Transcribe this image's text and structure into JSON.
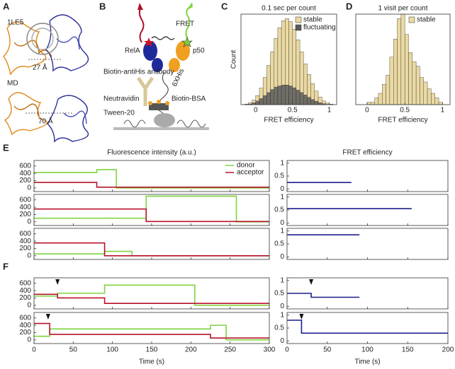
{
  "panel_labels": [
    "A",
    "B",
    "C",
    "D",
    "E",
    "F"
  ],
  "panel_a": {
    "top_label": "1LE5",
    "top_distance": "27 Å",
    "bottom_label": "MD",
    "bottom_distance": "70 Å"
  },
  "panel_b": {
    "fret": "FRET",
    "rela": "RelA",
    "p50": "p50",
    "his_tag": "6XHis",
    "antibody": "Biotin-antiHis antibody",
    "neutravidin": "Neutravidin",
    "bsa": "Biotin-BSA",
    "tween": "Tween-20"
  },
  "chart_data": [
    {
      "type": "histogram",
      "title": "0.1 sec per count",
      "xlabel": "FRET efficiency",
      "ylabel": "Count",
      "bins": [
        -0.15,
        -0.1,
        -0.05,
        0,
        0.05,
        0.1,
        0.15,
        0.2,
        0.25,
        0.3,
        0.35,
        0.4,
        0.45,
        0.5,
        0.55,
        0.6,
        0.65,
        0.7,
        0.75,
        0.8,
        0.85,
        0.9,
        0.95,
        1,
        1.05
      ],
      "series": [
        {
          "name": "stable",
          "color": "#ead9a2",
          "values": [
            20,
            60,
            150,
            300,
            550,
            900,
            1300,
            1750,
            2200,
            2550,
            2780,
            2850,
            2750,
            2500,
            2150,
            1750,
            1350,
            1000,
            700,
            450,
            250,
            120,
            50,
            15
          ]
        },
        {
          "name": "fluctuating",
          "color": "#5a5a5a",
          "values": [
            5,
            20,
            60,
            120,
            200,
            300,
            400,
            500,
            580,
            620,
            650,
            650,
            620,
            560,
            480,
            400,
            320,
            240,
            170,
            110,
            60,
            30,
            10,
            3
          ]
        }
      ],
      "xlim": [
        -0.2,
        1.1
      ],
      "ylim": [
        0,
        3000
      ],
      "xticks": [
        0,
        0.5,
        1
      ]
    },
    {
      "type": "histogram",
      "title": "1 visit per count",
      "xlabel": "FRET efficiency",
      "bins": [
        0,
        0.05,
        0.1,
        0.15,
        0.2,
        0.25,
        0.3,
        0.35,
        0.4,
        0.45,
        0.5,
        0.55,
        0.6,
        0.65,
        0.7,
        0.75,
        0.8,
        0.85,
        0.9,
        0.95,
        1
      ],
      "series": [
        {
          "name": "stable",
          "color": "#ead9a2",
          "values": [
            1,
            1,
            3,
            5,
            9,
            13,
            21,
            29,
            38,
            40,
            31,
            23,
            19,
            17,
            12,
            10,
            7,
            5,
            3,
            1
          ]
        }
      ],
      "xlim": [
        -0.15,
        1.1
      ],
      "ylim": [
        0,
        40
      ],
      "xticks": [
        0,
        0.5,
        1
      ]
    },
    {
      "type": "line",
      "ylabel": "Fluorescence intensity (a.u.)",
      "xlabel": "Time (s)",
      "xlim": [
        0,
        300
      ],
      "ylim": [
        -100,
        750
      ],
      "xticks": [
        0,
        50,
        100,
        150,
        200,
        250,
        300
      ],
      "yticks": [
        0,
        200,
        400,
        600
      ],
      "series_names": [
        "donor",
        "acceptor"
      ],
      "colors": [
        "#7fd43f",
        "#b8122a"
      ],
      "traces": [
        {
          "series": [
            {
              "x": [
                0,
                80,
                80,
                105,
                105,
                300
              ],
              "values": [
                420,
                420,
                500,
                500,
                0,
                0
              ]
            },
            {
              "x": [
                0,
                80,
                80,
                300
              ],
              "values": [
                150,
                150,
                20,
                20
              ]
            }
          ],
          "arrows": []
        },
        {
          "series": [
            {
              "x": [
                0,
                143,
                143,
                258,
                258,
                300
              ],
              "values": [
                100,
                100,
                700,
                700,
                0,
                0
              ]
            },
            {
              "x": [
                0,
                143,
                143,
                300
              ],
              "values": [
                350,
                350,
                10,
                10
              ]
            }
          ],
          "arrows": []
        },
        {
          "series": [
            {
              "x": [
                0,
                90,
                90,
                125,
                125,
                300
              ],
              "values": [
                50,
                50,
                120,
                120,
                0,
                0
              ]
            },
            {
              "x": [
                0,
                90,
                90,
                300
              ],
              "values": [
                350,
                350,
                0,
                0
              ]
            }
          ],
          "arrows": []
        },
        {
          "series": [
            {
              "x": [
                0,
                30,
                30,
                90,
                90,
                205,
                205,
                300
              ],
              "values": [
                250,
                250,
                330,
                330,
                550,
                550,
                0,
                0
              ]
            },
            {
              "x": [
                0,
                30,
                30,
                90,
                90,
                300
              ],
              "values": [
                300,
                300,
                200,
                200,
                50,
                50
              ]
            }
          ],
          "arrows": [
            30
          ]
        },
        {
          "series": [
            {
              "x": [
                0,
                20,
                20,
                225,
                225,
                245,
                245,
                300
              ],
              "values": [
                100,
                100,
                300,
                300,
                400,
                400,
                0,
                0
              ]
            },
            {
              "x": [
                0,
                20,
                20,
                225,
                225,
                300
              ],
              "values": [
                450,
                450,
                150,
                150,
                50,
                50
              ]
            }
          ],
          "arrows": [
            18
          ]
        }
      ]
    },
    {
      "type": "line",
      "ylabel": "FRET efficiency",
      "xlabel": "Time (s)",
      "xlim": [
        0,
        200
      ],
      "ylim": [
        -0.1,
        1.1
      ],
      "xticks": [
        0,
        50,
        100,
        150,
        200
      ],
      "yticks": [
        0,
        0.5,
        1
      ],
      "color": "#1c1f8c",
      "traces": [
        {
          "x": [
            0,
            80
          ],
          "values": [
            0.25,
            0.25
          ],
          "arrows": []
        },
        {
          "x": [
            0,
            155
          ],
          "values": [
            0.55,
            0.55
          ],
          "arrows": []
        },
        {
          "x": [
            0,
            90
          ],
          "values": [
            0.85,
            0.85
          ],
          "arrows": []
        },
        {
          "x": [
            0,
            30,
            30,
            90
          ],
          "values": [
            0.5,
            0.5,
            0.35,
            0.35
          ],
          "arrows": [
            30
          ]
        },
        {
          "x": [
            0,
            18,
            18,
            200
          ],
          "values": [
            0.8,
            0.8,
            0.3,
            0.3
          ],
          "arrows": [
            18
          ]
        }
      ]
    }
  ]
}
